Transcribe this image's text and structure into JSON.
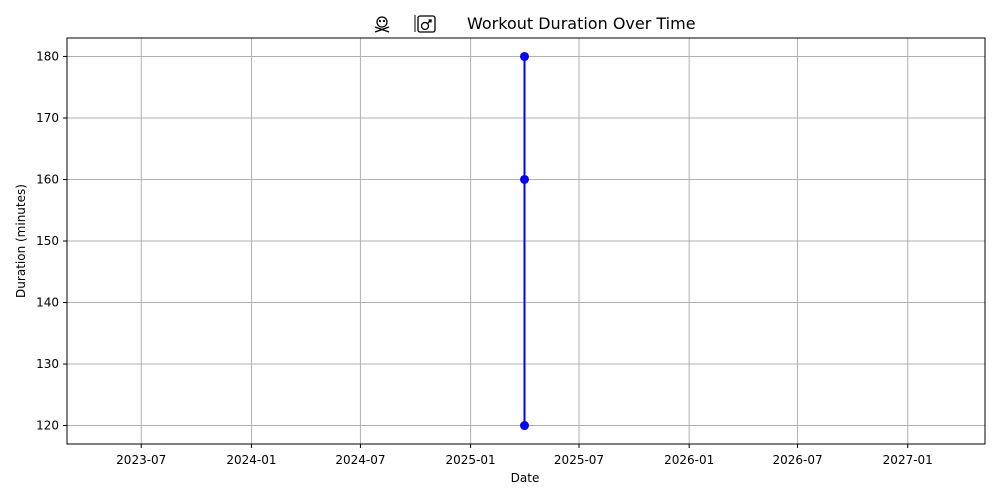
{
  "chart_data": {
    "type": "line",
    "title": "Workout Duration Over Time",
    "title_icons": [
      "skull-crossbones-icon",
      "person-lifting-weights-icon"
    ],
    "xlabel": "Date",
    "ylabel": "Duration (minutes)",
    "x_axis_type": "date",
    "xlim": [
      "2023-02-27",
      "2027-05-10"
    ],
    "ylim": [
      117,
      183
    ],
    "x_ticks": [
      "2023-07",
      "2024-01",
      "2024-07",
      "2025-01",
      "2025-07",
      "2026-01",
      "2026-07",
      "2027-01"
    ],
    "y_ticks": [
      120,
      130,
      140,
      150,
      160,
      170,
      180
    ],
    "grid": true,
    "series": [
      {
        "color": "#0000ff",
        "marker": "circle",
        "points": [
          {
            "x": "2025-04-01",
            "y": 120
          },
          {
            "x": "2025-04-01",
            "y": 160
          },
          {
            "x": "2025-04-01",
            "y": 180
          }
        ]
      }
    ]
  }
}
